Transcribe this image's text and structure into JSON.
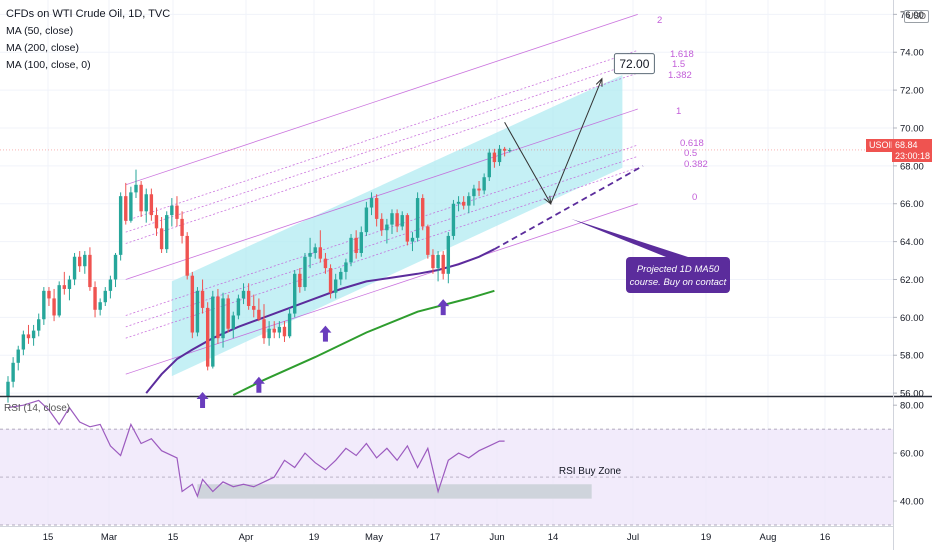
{
  "header": {
    "title": "CFDs on WTI Crude Oil, 1D, TVC",
    "indicators": [
      "MA (50, close)",
      "MA (200, close)",
      "MA (100, close, 0)"
    ],
    "currency_badge": "USD"
  },
  "price_tag": {
    "symbol": "USOIL",
    "price": "68.84",
    "countdown": "23:00:18"
  },
  "target_box": "72.00",
  "annotation": "Projected 1D MA50 course. Buy on contact",
  "rsi_zone_label": "RSI Buy Zone",
  "fib_levels": [
    "2",
    "1.618",
    "1.5",
    "1.382",
    "1",
    "0.618",
    "0.5",
    "0.382",
    "0"
  ],
  "colors": {
    "up": "#26a69a",
    "down": "#ef5350",
    "ma50": "#5b2c9c",
    "ma200": "#2e9d2e",
    "fib": "#c25dd8",
    "channel": "#b2ebf2",
    "arrow": "#6a3dbd",
    "rsi_line": "#9c5bbf"
  },
  "chart_data": [
    {
      "type": "candlestick",
      "title": "CFDs on WTI Crude Oil, 1D, TVC",
      "x_tick_labels": [
        "15",
        "Mar",
        "15",
        "Apr",
        "19",
        "May",
        "17",
        "Jun",
        "14",
        "Jul",
        "19",
        "Aug",
        "16"
      ],
      "y_tick_labels": [
        "56.00",
        "58.00",
        "60.00",
        "62.00",
        "64.00",
        "66.00",
        "68.00",
        "70.00",
        "72.00",
        "74.00",
        "76.00"
      ],
      "ylim": [
        55.9,
        76.6
      ],
      "last_price": 68.84,
      "candles": [
        {
          "o": 55.8,
          "h": 56.9,
          "l": 55.5,
          "c": 56.6
        },
        {
          "o": 56.6,
          "h": 57.9,
          "l": 56.3,
          "c": 57.6
        },
        {
          "o": 57.6,
          "h": 58.5,
          "l": 57.2,
          "c": 58.3
        },
        {
          "o": 58.3,
          "h": 59.3,
          "l": 58.0,
          "c": 59.1
        },
        {
          "o": 59.1,
          "h": 59.6,
          "l": 58.6,
          "c": 58.9
        },
        {
          "o": 58.9,
          "h": 59.6,
          "l": 58.5,
          "c": 59.3
        },
        {
          "o": 59.3,
          "h": 60.2,
          "l": 59.0,
          "c": 59.9
        },
        {
          "o": 59.9,
          "h": 61.6,
          "l": 59.6,
          "c": 61.4
        },
        {
          "o": 61.4,
          "h": 61.6,
          "l": 60.6,
          "c": 61.0
        },
        {
          "o": 61.0,
          "h": 61.5,
          "l": 59.8,
          "c": 60.1
        },
        {
          "o": 60.1,
          "h": 61.9,
          "l": 60.0,
          "c": 61.7
        },
        {
          "o": 61.7,
          "h": 62.4,
          "l": 61.2,
          "c": 61.5
        },
        {
          "o": 61.5,
          "h": 62.2,
          "l": 60.9,
          "c": 62.0
        },
        {
          "o": 62.0,
          "h": 63.4,
          "l": 61.7,
          "c": 63.2
        },
        {
          "o": 63.2,
          "h": 63.5,
          "l": 62.4,
          "c": 62.7
        },
        {
          "o": 62.7,
          "h": 63.5,
          "l": 62.3,
          "c": 63.3
        },
        {
          "o": 63.3,
          "h": 63.7,
          "l": 61.4,
          "c": 61.6
        },
        {
          "o": 61.6,
          "h": 61.9,
          "l": 60.0,
          "c": 60.4
        },
        {
          "o": 60.4,
          "h": 61.0,
          "l": 60.1,
          "c": 60.8
        },
        {
          "o": 60.8,
          "h": 61.6,
          "l": 60.6,
          "c": 61.4
        },
        {
          "o": 61.4,
          "h": 62.2,
          "l": 61.0,
          "c": 62.0
        },
        {
          "o": 62.0,
          "h": 63.4,
          "l": 61.6,
          "c": 63.3
        },
        {
          "o": 63.3,
          "h": 66.6,
          "l": 63.0,
          "c": 66.4
        },
        {
          "o": 66.4,
          "h": 67.1,
          "l": 64.9,
          "c": 65.1
        },
        {
          "o": 65.1,
          "h": 66.9,
          "l": 65.0,
          "c": 66.6
        },
        {
          "o": 66.6,
          "h": 67.8,
          "l": 66.3,
          "c": 67.0
        },
        {
          "o": 67.0,
          "h": 67.2,
          "l": 65.3,
          "c": 65.6
        },
        {
          "o": 65.6,
          "h": 66.8,
          "l": 65.0,
          "c": 66.5
        },
        {
          "o": 66.5,
          "h": 66.8,
          "l": 65.1,
          "c": 65.4
        },
        {
          "o": 65.4,
          "h": 65.8,
          "l": 64.3,
          "c": 64.7
        },
        {
          "o": 64.7,
          "h": 65.3,
          "l": 63.4,
          "c": 63.6
        },
        {
          "o": 63.6,
          "h": 65.6,
          "l": 63.4,
          "c": 65.4
        },
        {
          "o": 65.4,
          "h": 66.3,
          "l": 64.8,
          "c": 65.9
        },
        {
          "o": 65.9,
          "h": 66.4,
          "l": 64.8,
          "c": 65.2
        },
        {
          "o": 65.2,
          "h": 65.6,
          "l": 63.9,
          "c": 64.3
        },
        {
          "o": 64.3,
          "h": 64.5,
          "l": 62.0,
          "c": 62.2
        },
        {
          "o": 62.2,
          "h": 62.4,
          "l": 58.9,
          "c": 59.2
        },
        {
          "o": 59.2,
          "h": 61.6,
          "l": 59.0,
          "c": 61.4
        },
        {
          "o": 61.4,
          "h": 62.0,
          "l": 60.2,
          "c": 60.5
        },
        {
          "o": 60.5,
          "h": 60.8,
          "l": 57.2,
          "c": 57.4
        },
        {
          "o": 57.4,
          "h": 61.4,
          "l": 57.3,
          "c": 61.1
        },
        {
          "o": 61.1,
          "h": 61.5,
          "l": 58.6,
          "c": 58.9
        },
        {
          "o": 58.9,
          "h": 61.3,
          "l": 58.4,
          "c": 61.0
        },
        {
          "o": 61.0,
          "h": 61.2,
          "l": 59.2,
          "c": 59.4
        },
        {
          "o": 59.4,
          "h": 60.3,
          "l": 58.9,
          "c": 60.1
        },
        {
          "o": 60.1,
          "h": 61.2,
          "l": 59.9,
          "c": 61.0
        },
        {
          "o": 61.0,
          "h": 61.8,
          "l": 60.7,
          "c": 61.4
        },
        {
          "o": 61.4,
          "h": 61.8,
          "l": 60.4,
          "c": 60.6
        },
        {
          "o": 60.6,
          "h": 61.2,
          "l": 60.0,
          "c": 60.4
        },
        {
          "o": 60.4,
          "h": 61.0,
          "l": 59.8,
          "c": 59.9
        },
        {
          "o": 59.9,
          "h": 60.7,
          "l": 58.6,
          "c": 58.9
        },
        {
          "o": 58.9,
          "h": 59.8,
          "l": 58.5,
          "c": 59.4
        },
        {
          "o": 59.4,
          "h": 59.8,
          "l": 58.9,
          "c": 59.2
        },
        {
          "o": 59.2,
          "h": 59.8,
          "l": 58.9,
          "c": 59.5
        },
        {
          "o": 59.5,
          "h": 59.8,
          "l": 58.7,
          "c": 59.0
        },
        {
          "o": 59.0,
          "h": 60.5,
          "l": 58.9,
          "c": 60.2
        },
        {
          "o": 60.2,
          "h": 62.5,
          "l": 60.0,
          "c": 62.3
        },
        {
          "o": 62.3,
          "h": 62.6,
          "l": 61.3,
          "c": 61.6
        },
        {
          "o": 61.6,
          "h": 63.4,
          "l": 61.4,
          "c": 63.2
        },
        {
          "o": 63.2,
          "h": 64.2,
          "l": 62.6,
          "c": 63.4
        },
        {
          "o": 63.4,
          "h": 63.9,
          "l": 63.1,
          "c": 63.7
        },
        {
          "o": 63.7,
          "h": 64.6,
          "l": 62.9,
          "c": 63.1
        },
        {
          "o": 63.1,
          "h": 63.4,
          "l": 62.3,
          "c": 62.6
        },
        {
          "o": 62.6,
          "h": 62.8,
          "l": 61.0,
          "c": 61.3
        },
        {
          "o": 61.3,
          "h": 62.3,
          "l": 61.0,
          "c": 62.0
        },
        {
          "o": 62.0,
          "h": 62.6,
          "l": 61.7,
          "c": 62.4
        },
        {
          "o": 62.4,
          "h": 63.1,
          "l": 62.0,
          "c": 62.9
        },
        {
          "o": 62.9,
          "h": 64.4,
          "l": 62.7,
          "c": 64.2
        },
        {
          "o": 64.2,
          "h": 64.6,
          "l": 63.1,
          "c": 63.4
        },
        {
          "o": 63.4,
          "h": 64.8,
          "l": 63.2,
          "c": 64.5
        },
        {
          "o": 64.5,
          "h": 66.1,
          "l": 64.3,
          "c": 65.8
        },
        {
          "o": 65.8,
          "h": 66.6,
          "l": 65.4,
          "c": 66.3
        },
        {
          "o": 66.3,
          "h": 66.5,
          "l": 64.8,
          "c": 65.2
        },
        {
          "o": 65.2,
          "h": 65.5,
          "l": 64.3,
          "c": 64.6
        },
        {
          "o": 64.6,
          "h": 65.2,
          "l": 63.9,
          "c": 64.9
        },
        {
          "o": 64.9,
          "h": 65.7,
          "l": 64.4,
          "c": 65.5
        },
        {
          "o": 65.5,
          "h": 65.7,
          "l": 64.5,
          "c": 64.8
        },
        {
          "o": 64.8,
          "h": 65.6,
          "l": 64.6,
          "c": 65.4
        },
        {
          "o": 65.4,
          "h": 65.5,
          "l": 63.8,
          "c": 64.0
        },
        {
          "o": 64.0,
          "h": 64.5,
          "l": 63.5,
          "c": 64.2
        },
        {
          "o": 64.2,
          "h": 66.6,
          "l": 64.0,
          "c": 66.3
        },
        {
          "o": 66.3,
          "h": 66.5,
          "l": 64.6,
          "c": 64.8
        },
        {
          "o": 64.8,
          "h": 64.9,
          "l": 63.1,
          "c": 63.3
        },
        {
          "o": 63.3,
          "h": 63.6,
          "l": 62.3,
          "c": 62.6
        },
        {
          "o": 62.6,
          "h": 63.5,
          "l": 61.9,
          "c": 63.3
        },
        {
          "o": 63.3,
          "h": 63.5,
          "l": 62.0,
          "c": 62.3
        },
        {
          "o": 62.3,
          "h": 64.5,
          "l": 61.8,
          "c": 64.3
        },
        {
          "o": 64.3,
          "h": 66.2,
          "l": 64.1,
          "c": 66.0
        },
        {
          "o": 66.0,
          "h": 66.4,
          "l": 65.6,
          "c": 66.1
        },
        {
          "o": 66.1,
          "h": 66.4,
          "l": 65.7,
          "c": 65.9
        },
        {
          "o": 65.9,
          "h": 66.6,
          "l": 65.5,
          "c": 66.4
        },
        {
          "o": 66.4,
          "h": 67.0,
          "l": 65.9,
          "c": 66.8
        },
        {
          "o": 66.8,
          "h": 67.2,
          "l": 66.4,
          "c": 66.7
        },
        {
          "o": 66.7,
          "h": 67.6,
          "l": 66.5,
          "c": 67.4
        },
        {
          "o": 67.4,
          "h": 68.9,
          "l": 67.2,
          "c": 68.7
        },
        {
          "o": 68.7,
          "h": 68.9,
          "l": 67.9,
          "c": 68.2
        },
        {
          "o": 68.2,
          "h": 69.1,
          "l": 68.0,
          "c": 68.9
        },
        {
          "o": 68.9,
          "h": 69.0,
          "l": 68.5,
          "c": 68.8
        },
        {
          "o": 68.8,
          "h": 68.95,
          "l": 68.7,
          "c": 68.84
        }
      ],
      "ma50": [
        {
          "x": 27,
          "y": 56.0
        },
        {
          "x": 30,
          "y": 57.0
        },
        {
          "x": 33,
          "y": 57.8
        },
        {
          "x": 36,
          "y": 58.3
        },
        {
          "x": 40,
          "y": 58.9
        },
        {
          "x": 45,
          "y": 59.5
        },
        {
          "x": 50,
          "y": 60.0
        },
        {
          "x": 55,
          "y": 60.5
        },
        {
          "x": 60,
          "y": 61.0
        },
        {
          "x": 65,
          "y": 61.5
        },
        {
          "x": 70,
          "y": 61.9
        },
        {
          "x": 75,
          "y": 62.1
        },
        {
          "x": 80,
          "y": 62.3
        },
        {
          "x": 84,
          "y": 62.5
        },
        {
          "x": 88,
          "y": 62.8
        },
        {
          "x": 92,
          "y": 63.2
        },
        {
          "x": 95,
          "y": 63.6
        }
      ],
      "ma50_projection": [
        {
          "x": 95,
          "y": 63.6
        },
        {
          "x": 124,
          "y": 68.0
        }
      ],
      "ma200": [
        {
          "x": 44,
          "y": 55.9
        },
        {
          "x": 50,
          "y": 56.7
        },
        {
          "x": 60,
          "y": 57.9
        },
        {
          "x": 70,
          "y": 59.2
        },
        {
          "x": 80,
          "y": 60.3
        },
        {
          "x": 90,
          "y": 61.0
        },
        {
          "x": 95,
          "y": 61.4
        }
      ],
      "channel": {
        "x_start": 32,
        "x_end": 120,
        "upper": [
          61.9,
          72.8
        ],
        "lower": [
          56.9,
          67.9
        ]
      },
      "fib_lines": {
        "x_start": 23,
        "x_end": 123,
        "levels": [
          {
            "label": "2",
            "y0": 67.0,
            "y1": 76.0
          },
          {
            "label": "1.618",
            "y0": 65.1,
            "y1": 74.1
          },
          {
            "label": "1.5",
            "y0": 64.5,
            "y1": 73.5
          },
          {
            "label": "1.382",
            "y0": 63.9,
            "y1": 72.9
          },
          {
            "label": "1",
            "y0": 62.0,
            "y1": 71.0
          },
          {
            "label": "0.618",
            "y0": 60.1,
            "y1": 69.1
          },
          {
            "label": "0.5",
            "y0": 59.5,
            "y1": 68.5
          },
          {
            "label": "0.382",
            "y0": 58.9,
            "y1": 67.9
          },
          {
            "label": "0",
            "y0": 57.0,
            "y1": 66.0
          }
        ]
      },
      "projection_path": [
        {
          "x": 97,
          "y": 70.3
        },
        {
          "x": 106,
          "y": 66.0
        },
        {
          "x": 116,
          "y": 72.6
        }
      ],
      "buy_signal_arrows": [
        {
          "x": 38,
          "y": 56.8
        },
        {
          "x": 49,
          "y": 57.6
        },
        {
          "x": 62,
          "y": 60.3
        },
        {
          "x": 85,
          "y": 61.7
        }
      ],
      "annotation_anchor": {
        "x": 110,
        "y": 65.2
      },
      "target_anchor": {
        "x": 120,
        "y": 73.4
      }
    },
    {
      "type": "line",
      "title": "RSI (14, close)",
      "y_tick_labels": [
        "40.00",
        "60.00",
        "80.00"
      ],
      "ylim": [
        30,
        83
      ],
      "band": [
        30,
        70
      ],
      "midline": 50,
      "buy_zone": {
        "x_start": 37,
        "x_end": 114,
        "y_range": [
          41,
          47
        ]
      },
      "values": [
        {
          "x": 0,
          "y": 79
        },
        {
          "x": 3,
          "y": 80
        },
        {
          "x": 6,
          "y": 82
        },
        {
          "x": 8,
          "y": 78
        },
        {
          "x": 10,
          "y": 72
        },
        {
          "x": 12,
          "y": 79
        },
        {
          "x": 14,
          "y": 73
        },
        {
          "x": 16,
          "y": 71
        },
        {
          "x": 18,
          "y": 72
        },
        {
          "x": 20,
          "y": 63
        },
        {
          "x": 22,
          "y": 59
        },
        {
          "x": 24,
          "y": 72
        },
        {
          "x": 26,
          "y": 64
        },
        {
          "x": 28,
          "y": 66
        },
        {
          "x": 30,
          "y": 61
        },
        {
          "x": 33,
          "y": 58
        },
        {
          "x": 34,
          "y": 44
        },
        {
          "x": 36,
          "y": 47
        },
        {
          "x": 37,
          "y": 42
        },
        {
          "x": 38,
          "y": 49
        },
        {
          "x": 40,
          "y": 44
        },
        {
          "x": 42,
          "y": 48
        },
        {
          "x": 44,
          "y": 46
        },
        {
          "x": 46,
          "y": 47
        },
        {
          "x": 48,
          "y": 46
        },
        {
          "x": 50,
          "y": 48
        },
        {
          "x": 52,
          "y": 50
        },
        {
          "x": 54,
          "y": 57
        },
        {
          "x": 56,
          "y": 54
        },
        {
          "x": 58,
          "y": 60
        },
        {
          "x": 60,
          "y": 56
        },
        {
          "x": 62,
          "y": 53
        },
        {
          "x": 64,
          "y": 57
        },
        {
          "x": 66,
          "y": 62
        },
        {
          "x": 68,
          "y": 59
        },
        {
          "x": 70,
          "y": 64
        },
        {
          "x": 72,
          "y": 58
        },
        {
          "x": 74,
          "y": 62
        },
        {
          "x": 76,
          "y": 57
        },
        {
          "x": 78,
          "y": 63
        },
        {
          "x": 80,
          "y": 54
        },
        {
          "x": 82,
          "y": 62
        },
        {
          "x": 84,
          "y": 44
        },
        {
          "x": 86,
          "y": 57
        },
        {
          "x": 88,
          "y": 60
        },
        {
          "x": 90,
          "y": 58
        },
        {
          "x": 92,
          "y": 61
        },
        {
          "x": 94,
          "y": 63
        },
        {
          "x": 96,
          "y": 65
        },
        {
          "x": 97,
          "y": 65
        }
      ]
    }
  ]
}
